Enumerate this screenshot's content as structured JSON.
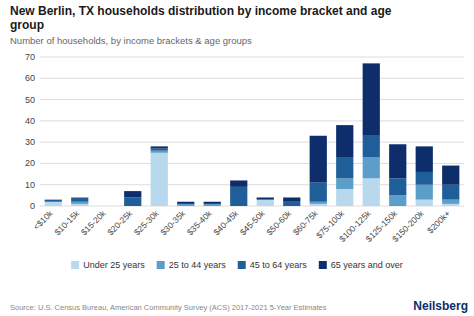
{
  "chart_data": {
    "type": "bar",
    "stacked": true,
    "title": "New Berlin, TX households distribution by income bracket and age\ngroup",
    "subtitle": "Number of households, by income brackets & age groups",
    "source": "Source: U.S. Census Bureau, American Community Survey (ACS) 2017-2021 5-Year Estimates",
    "annotations": [
      "Neilsberg"
    ],
    "categories": [
      "<$10k",
      "$10-15k",
      "$15-20k",
      "$20-25k",
      "$25-30k",
      "$30-35k",
      "$35-40k",
      "$40-45k",
      "$45-50k",
      "$50-60k",
      "$60-75k",
      "$75-100k",
      "$100-125k",
      "$125-150k",
      "$150-200k",
      "$200k+"
    ],
    "series": [
      {
        "name": "Under 25 years",
        "color": "#b8d9ed",
        "values": [
          2,
          1,
          0,
          0,
          25,
          0,
          0,
          0,
          3,
          0,
          1,
          8,
          13,
          0,
          3,
          1
        ]
      },
      {
        "name": "25 to 44 years",
        "color": "#5b9ec9",
        "values": [
          0,
          1,
          0,
          0,
          1,
          1,
          1,
          0,
          0,
          0,
          1,
          5,
          10,
          5,
          7,
          2
        ]
      },
      {
        "name": "45 to 64 years",
        "color": "#1f5f99",
        "values": [
          1,
          2,
          0,
          4,
          1,
          0,
          0,
          9,
          0,
          2,
          9,
          10,
          10,
          8,
          6,
          7
        ]
      },
      {
        "name": "65 years and over",
        "color": "#0d2d6b",
        "values": [
          0,
          0,
          0,
          3,
          1,
          1,
          1,
          3,
          1,
          2,
          22,
          15,
          34,
          16,
          12,
          9
        ]
      }
    ],
    "ylim": [
      0,
      70
    ],
    "yticks": [
      0,
      10,
      20,
      30,
      40,
      50,
      60,
      70
    ],
    "grid": true,
    "legend": "bottom"
  }
}
